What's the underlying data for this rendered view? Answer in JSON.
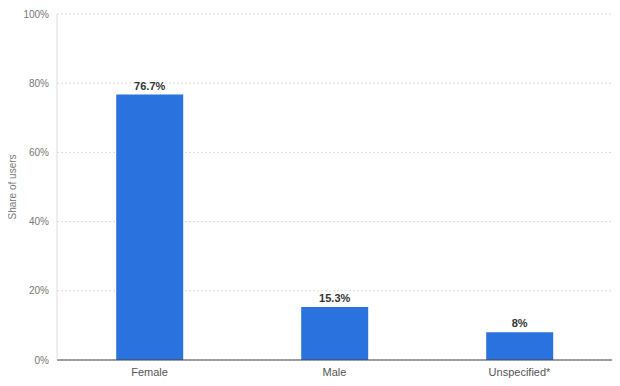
{
  "chart_data": {
    "type": "bar",
    "y_label": "Share of users",
    "categories": [
      "Female",
      "Male",
      "Unspecified*"
    ],
    "values": [
      76.7,
      15.3,
      8
    ],
    "value_labels": [
      "76.7%",
      "15.3%",
      "8%"
    ],
    "data_labels": true,
    "color": "#2a73de",
    "ylim": [
      0,
      100
    ],
    "yticks": [
      {
        "value": 0,
        "label": "0%"
      },
      {
        "value": 20,
        "label": "20%"
      },
      {
        "value": 40,
        "label": "40%"
      },
      {
        "value": 60,
        "label": "60%"
      },
      {
        "value": 80,
        "label": "80%"
      },
      {
        "value": 100,
        "label": "100%"
      }
    ],
    "grid": true
  }
}
